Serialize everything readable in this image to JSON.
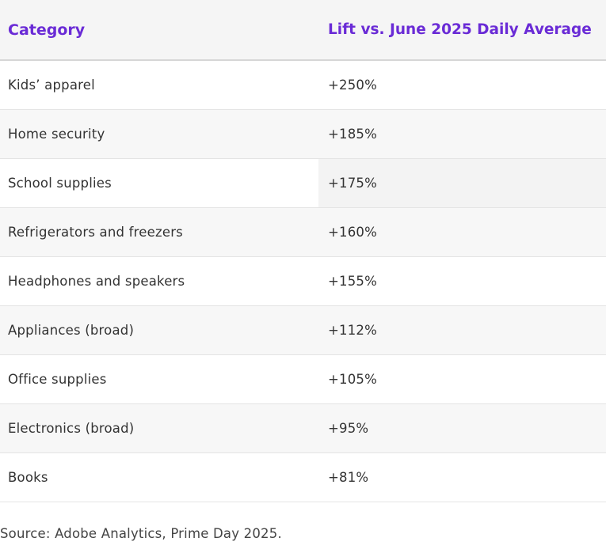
{
  "table": {
    "headers": {
      "category": "Category",
      "lift": "Lift vs. June 2025 Daily Average"
    },
    "rows": [
      {
        "category": "Kids’ apparel",
        "lift": "+250%"
      },
      {
        "category": "Home security",
        "lift": "+185%"
      },
      {
        "category": "School supplies",
        "lift": "+175%"
      },
      {
        "category": "Refrigerators and freezers",
        "lift": "+160%"
      },
      {
        "category": "Headphones and speakers",
        "lift": "+155%"
      },
      {
        "category": "Appliances (broad)",
        "lift": "+112%"
      },
      {
        "category": "Office supplies",
        "lift": "+105%"
      },
      {
        "category": "Electronics (broad)",
        "lift": "+95%"
      },
      {
        "category": "Books",
        "lift": "+81%"
      }
    ]
  },
  "source": "Source: Adobe Analytics, Prime Day 2025.",
  "colors": {
    "header_text": "#6a2bd6",
    "header_bg": "#f5f5f5",
    "alt_row_bg": "#f7f7f7"
  }
}
